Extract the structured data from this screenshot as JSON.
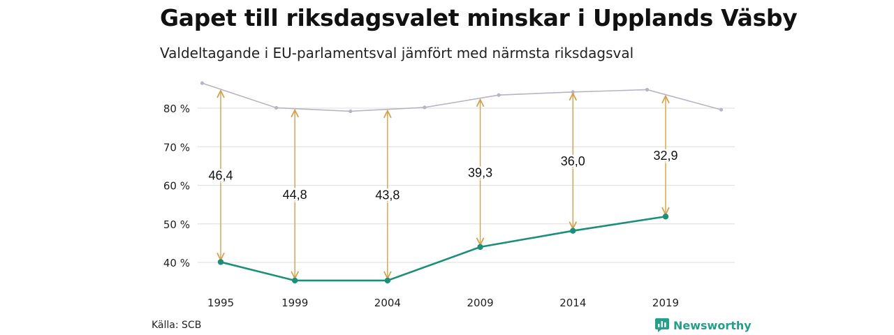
{
  "title": "Gapet till riksdagsvalet minskar i Upplands Väsby",
  "subtitle": "Valdeltagande i EU-parlamentsval jämfört med närmsta riksdagsval",
  "source": "Källa: SCB",
  "brand": {
    "name": "Newsworthy",
    "icon": "newsworthy-logo-icon",
    "color": "#22a089"
  },
  "colors": {
    "eu": "#1a8f7a",
    "riksdag": "#b9b3c6",
    "gap": "#d4a04a",
    "grid": "#e3e3e3"
  },
  "chart_data": {
    "type": "line",
    "x_ticks": [
      "1995",
      "1999",
      "2004",
      "2009",
      "2014",
      "2019"
    ],
    "y_ticks": [
      "40 %",
      "50 %",
      "60 %",
      "70 %",
      "80 %"
    ],
    "ylim": [
      36,
      88
    ],
    "xlim": [
      1995,
      2022
    ],
    "series": [
      {
        "key": "riksdag",
        "x": [
          1994,
          1998,
          2002,
          2006,
          2010,
          2014,
          2018,
          2022
        ],
        "values": [
          86.5,
          80.1,
          79.2,
          80.2,
          83.4,
          84.2,
          84.8,
          79.6
        ]
      },
      {
        "key": "eu",
        "x": [
          1995,
          1999,
          2004,
          2009,
          2014,
          2019
        ],
        "values": [
          40.1,
          35.3,
          35.3,
          44.0,
          48.2,
          51.9
        ]
      }
    ],
    "gaps": [
      {
        "x": 1995,
        "label": "46,4"
      },
      {
        "x": 1999,
        "label": "44,8"
      },
      {
        "x": 2004,
        "label": "43,8"
      },
      {
        "x": 2009,
        "label": "39,3"
      },
      {
        "x": 2014,
        "label": "36,0"
      },
      {
        "x": 2019,
        "label": "32,9"
      }
    ],
    "grid": true,
    "legend": "none"
  }
}
